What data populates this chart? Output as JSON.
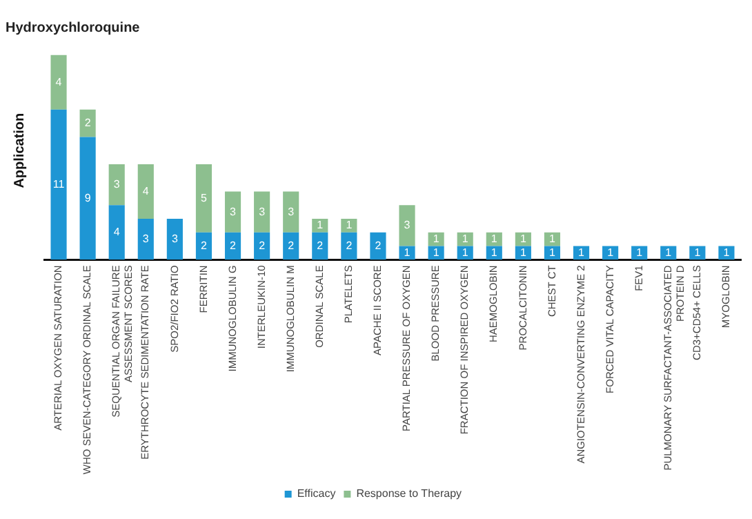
{
  "chart_data": {
    "type": "bar",
    "title": "Hydroxychloroquine",
    "ylabel": "Application",
    "stacked": true,
    "data_labels": true,
    "legend": "bottom",
    "grid": false,
    "categories": [
      "ARTERIAL OXYGEN SATURATION",
      "WHO SEVEN-CATEGORY ORDINAL SCALE",
      "SEQUENTIAL ORGAN FAILURE ASSESSMENT SCORES",
      "ERYTHROCYTE SEDIMENTATION RATE",
      "SPO2/FIO2 RATIO",
      "FERRITIN",
      "IMMUNOGLOBULIN G",
      "INTERLEUKIN-10",
      "IMMUNOGLOBULIN M",
      "ORDINAL SCALE",
      "PLATELETS",
      "APACHE II SCORE",
      "PARTIAL PRESSURE OF OXYGEN",
      "BLOOD PRESSURE",
      "FRACTION OF INSPIRED OXYGEN",
      "HAEMOGLOBIN",
      "PROCALCITONIN",
      "CHEST CT",
      "ANGIOTENSIN-CONVERTING ENZYME 2",
      "FORCED VITAL CAPACITY",
      "FEV1",
      "PULMONARY SURFACTANT-ASSOCIATED PROTEIN D",
      "CD3+CD54+ CELLS",
      "MYOGLOBIN"
    ],
    "series": [
      {
        "name": "Efficacy",
        "color": "#1e96d4",
        "values": [
          11,
          9,
          4,
          3,
          3,
          2,
          2,
          2,
          2,
          2,
          2,
          2,
          1,
          1,
          1,
          1,
          1,
          1,
          1,
          1,
          1,
          1,
          1,
          1
        ]
      },
      {
        "name": "Response to Therapy",
        "color": "#8dbf8f",
        "values": [
          4,
          2,
          3,
          4,
          null,
          5,
          3,
          3,
          3,
          1,
          1,
          null,
          3,
          1,
          1,
          1,
          1,
          1,
          null,
          null,
          null,
          null,
          null,
          null
        ]
      }
    ]
  }
}
